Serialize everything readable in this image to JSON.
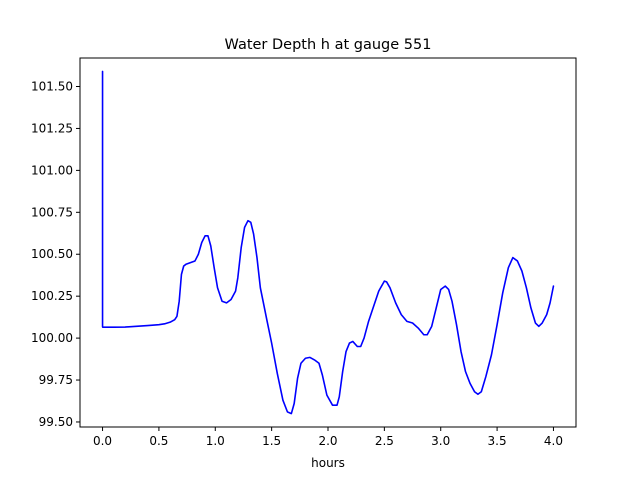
{
  "chart_data": {
    "type": "line",
    "title": "Water Depth h at gauge 551",
    "xlabel": "hours",
    "ylabel": "",
    "xlim": [
      -0.2,
      4.2
    ],
    "ylim": [
      99.47,
      101.67
    ],
    "x_ticks": [
      0.0,
      0.5,
      1.0,
      1.5,
      2.0,
      2.5,
      3.0,
      3.5,
      4.0
    ],
    "x_tick_labels": [
      "0.0",
      "0.5",
      "1.0",
      "1.5",
      "2.0",
      "2.5",
      "3.0",
      "3.5",
      "4.0"
    ],
    "y_ticks": [
      99.5,
      99.75,
      100.0,
      100.25,
      100.5,
      100.75,
      101.0,
      101.25,
      101.5
    ],
    "y_tick_labels": [
      "99.50",
      "99.75",
      "100.00",
      "100.25",
      "100.50",
      "100.75",
      "101.00",
      "101.25",
      "101.50"
    ],
    "grid": false,
    "series": [
      {
        "color": "#0000ff",
        "x": [
          0.0,
          0.0,
          0.001,
          0.1,
          0.2,
          0.3,
          0.4,
          0.5,
          0.55,
          0.6,
          0.64,
          0.66,
          0.68,
          0.7,
          0.72,
          0.74,
          0.78,
          0.82,
          0.85,
          0.88,
          0.91,
          0.935,
          0.96,
          0.99,
          1.02,
          1.06,
          1.1,
          1.14,
          1.18,
          1.2,
          1.23,
          1.26,
          1.29,
          1.315,
          1.34,
          1.37,
          1.4,
          1.43,
          1.46,
          1.5,
          1.55,
          1.6,
          1.64,
          1.675,
          1.7,
          1.73,
          1.76,
          1.8,
          1.84,
          1.88,
          1.92,
          1.95,
          1.99,
          2.04,
          2.08,
          2.1,
          2.13,
          2.16,
          2.19,
          2.22,
          2.26,
          2.29,
          2.32,
          2.36,
          2.4,
          2.45,
          2.5,
          2.52,
          2.55,
          2.6,
          2.65,
          2.7,
          2.75,
          2.8,
          2.85,
          2.88,
          2.92,
          2.96,
          3.0,
          3.04,
          3.07,
          3.1,
          3.14,
          3.18,
          3.22,
          3.26,
          3.3,
          3.33,
          3.36,
          3.4,
          3.45,
          3.5,
          3.55,
          3.6,
          3.64,
          3.68,
          3.72,
          3.76,
          3.8,
          3.84,
          3.87,
          3.9,
          3.94,
          3.97,
          4.0
        ],
        "y": [
          101.59,
          100.07,
          100.065,
          100.065,
          100.066,
          100.07,
          100.075,
          100.08,
          100.085,
          100.095,
          100.11,
          100.13,
          100.22,
          100.38,
          100.43,
          100.44,
          100.45,
          100.46,
          100.5,
          100.57,
          100.61,
          100.61,
          100.55,
          100.42,
          100.3,
          100.22,
          100.21,
          100.23,
          100.28,
          100.36,
          100.54,
          100.66,
          100.7,
          100.69,
          100.62,
          100.48,
          100.3,
          100.2,
          100.1,
          99.97,
          99.79,
          99.63,
          99.56,
          99.55,
          99.61,
          99.76,
          99.85,
          99.88,
          99.885,
          99.87,
          99.85,
          99.78,
          99.66,
          99.6,
          99.6,
          99.65,
          99.8,
          99.92,
          99.97,
          99.98,
          99.95,
          99.95,
          100.0,
          100.1,
          100.18,
          100.28,
          100.34,
          100.335,
          100.3,
          100.21,
          100.14,
          100.1,
          100.09,
          100.06,
          100.02,
          100.02,
          100.07,
          100.18,
          100.29,
          100.31,
          100.29,
          100.22,
          100.08,
          99.92,
          99.8,
          99.73,
          99.68,
          99.665,
          99.68,
          99.77,
          99.9,
          100.08,
          100.27,
          100.42,
          100.48,
          100.46,
          100.4,
          100.3,
          100.18,
          100.09,
          100.07,
          100.09,
          100.14,
          100.21,
          100.31
        ]
      }
    ]
  }
}
